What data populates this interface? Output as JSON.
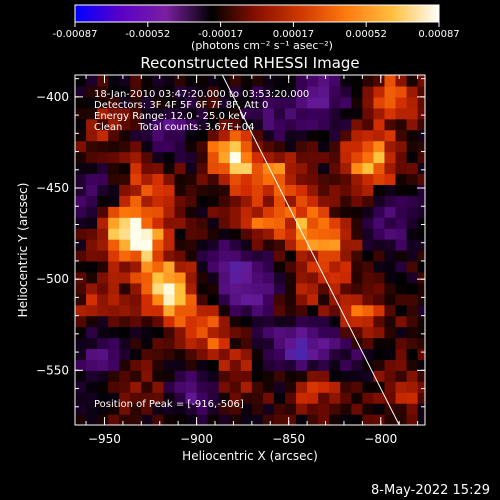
{
  "title": "Reconstructed RHESSI Image",
  "date_stamp": "8-May-2022 15:29",
  "colorbar": {
    "ticks": [
      "-0.00087",
      "-0.00052",
      "-0.00017",
      "0.00017",
      "0.00052",
      "0.00087"
    ],
    "units_label": "(photons cm⁻² s⁻¹ asec⁻²)",
    "range": [
      -0.00087,
      0.00087
    ],
    "colors": [
      "#0000ff",
      "#5a00c8",
      "#7a1fa0",
      "#000000",
      "#8a1000",
      "#d23a00",
      "#ff7d10",
      "#ffc040",
      "#ffffff"
    ]
  },
  "annotations": {
    "time_range": "18-Jan-2010 03:47:20.000 to 03:53:20.000",
    "detectors": "Detectors: 3F 4F 5F 6F 7F 8F, Att 0",
    "energy": "Energy Range: 12.0 - 25.0 keV",
    "clean": "Clean     Total counts: 3.67E+04",
    "peak": "Position of Peak = [-916,-506]"
  },
  "chart_data": {
    "type": "heatmap",
    "title": "Reconstructed RHESSI Image",
    "xlabel": "Heliocentric X (arcsec)",
    "ylabel": "Heliocentric Y (arcsec)",
    "xlim": [
      -966,
      -776
    ],
    "ylim": [
      -580,
      -388
    ],
    "xticks": [
      -950,
      -900,
      -850,
      -800
    ],
    "yticks": [
      -400,
      -450,
      -500,
      -550
    ],
    "xtick_labels": [
      "−950",
      "−900",
      "−850",
      "−800"
    ],
    "ytick_labels": [
      "−400",
      "−450",
      "−500",
      "−550"
    ],
    "peak_position": [
      -916,
      -506
    ],
    "limb_line": [
      [
        -886,
        -388
      ],
      [
        -790,
        -580
      ]
    ],
    "hotspots": [
      {
        "x": -916,
        "y": -506,
        "value": 1.0
      },
      {
        "x": -930,
        "y": -478,
        "value": 0.75
      },
      {
        "x": -880,
        "y": -432,
        "value": 0.95
      },
      {
        "x": -942,
        "y": -470,
        "value": 0.55
      },
      {
        "x": -925,
        "y": -445,
        "value": 0.5
      },
      {
        "x": -895,
        "y": -530,
        "value": 0.55
      },
      {
        "x": -870,
        "y": -470,
        "value": 0.5
      },
      {
        "x": -855,
        "y": -440,
        "value": 0.55
      },
      {
        "x": -840,
        "y": -470,
        "value": 0.6
      },
      {
        "x": -805,
        "y": -435,
        "value": 0.8
      },
      {
        "x": -825,
        "y": -485,
        "value": 0.5
      },
      {
        "x": -810,
        "y": -520,
        "value": 0.55
      },
      {
        "x": -845,
        "y": -515,
        "value": 0.4
      },
      {
        "x": -835,
        "y": -560,
        "value": 0.45
      },
      {
        "x": -880,
        "y": -555,
        "value": 0.35
      },
      {
        "x": -930,
        "y": -555,
        "value": 0.3
      },
      {
        "x": -955,
        "y": -510,
        "value": 0.35
      },
      {
        "x": -950,
        "y": -420,
        "value": 0.3
      },
      {
        "x": -795,
        "y": -400,
        "value": 0.55
      },
      {
        "x": -790,
        "y": -560,
        "value": 0.35
      }
    ],
    "coldspots": [
      {
        "x": -845,
        "y": -535,
        "value": -0.85
      },
      {
        "x": -870,
        "y": -505,
        "value": -0.55
      },
      {
        "x": -900,
        "y": -560,
        "value": -0.5
      },
      {
        "x": -950,
        "y": -540,
        "value": -0.4
      },
      {
        "x": -915,
        "y": -420,
        "value": -0.45
      },
      {
        "x": -830,
        "y": -400,
        "value": -0.5
      },
      {
        "x": -860,
        "y": -415,
        "value": -0.45
      },
      {
        "x": -795,
        "y": -470,
        "value": -0.4
      },
      {
        "x": -955,
        "y": -455,
        "value": -0.4
      },
      {
        "x": -880,
        "y": -490,
        "value": -0.45
      },
      {
        "x": -820,
        "y": -540,
        "value": -0.35
      }
    ]
  }
}
